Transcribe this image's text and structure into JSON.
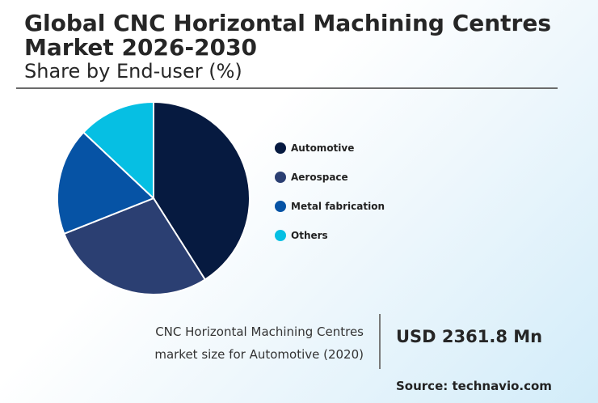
{
  "header": {
    "title": "Global CNC Horizontal Machining Centres Market 2026-2030",
    "subtitle": "Share by End-user (%)"
  },
  "colors": {
    "automotive": "#061A40",
    "aerospace": "#2B3F72",
    "metal_fabrication": "#0653A5",
    "others": "#06BFE3"
  },
  "chart_data": {
    "type": "pie",
    "title": "Global CNC Horizontal Machining Centres Market 2026-2030",
    "subtitle": "Share by End-user (%)",
    "categories": [
      "Automotive",
      "Aerospace",
      "Metal fabrication",
      "Others"
    ],
    "values": [
      41,
      28,
      18,
      13
    ],
    "colors": [
      "#061A40",
      "#2B3F72",
      "#0653A5",
      "#06BFE3"
    ],
    "legend_position": "right"
  },
  "legend": {
    "items": [
      {
        "label": "Automotive",
        "color": "#061A40"
      },
      {
        "label": "Aerospace",
        "color": "#2B3F72"
      },
      {
        "label": "Metal fabrication",
        "color": "#0653A5"
      },
      {
        "label": "Others",
        "color": "#06BFE3"
      }
    ]
  },
  "market": {
    "caption_line1": "CNC Horizontal Machining Centres",
    "caption_line2": "market size for Automotive (2020)",
    "value": "USD 2361.8 Mn"
  },
  "source": "Source: technavio.com"
}
